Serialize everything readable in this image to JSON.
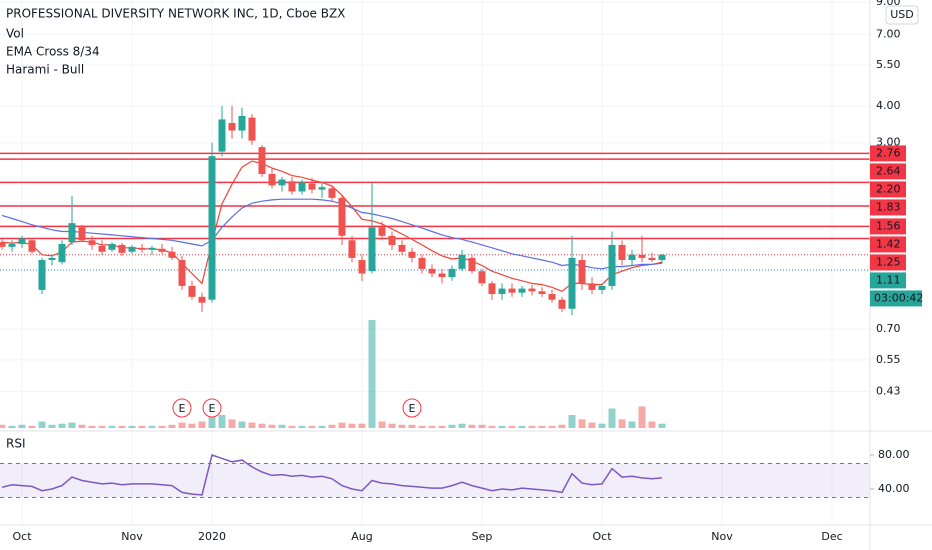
{
  "chart_data": {
    "type": "candlestick",
    "title": "PROFESSIONAL DIVERSITY NETWORK INC, 1D, Cboe BZX",
    "indicators": [
      "Vol",
      "EMA Cross 8/34",
      "Harami - Bull"
    ],
    "currency": "USD",
    "log_scale": true,
    "grid": true,
    "xlim": [
      -0.2,
      86.8
    ],
    "xticks": [
      {
        "value": 2,
        "label": "Oct"
      },
      {
        "value": 13,
        "label": "Nov"
      },
      {
        "value": 21,
        "label": "2020"
      },
      {
        "value": 36,
        "label": "Aug"
      },
      {
        "value": 48,
        "label": "Sep"
      },
      {
        "value": 60,
        "label": "Oct"
      },
      {
        "value": 72,
        "label": "Nov"
      },
      {
        "value": 83,
        "label": "Dec"
      }
    ],
    "ylim": [
      0.318,
      9.15
    ],
    "yticks": [
      {
        "value": 9,
        "label": "9.00"
      },
      {
        "value": 7,
        "label": "7.00"
      },
      {
        "value": 5.5,
        "label": "5.50"
      },
      {
        "value": 4,
        "label": "4.00"
      },
      {
        "value": 3,
        "label": "3.00"
      },
      {
        "value": 0.7,
        "label": "0.70"
      },
      {
        "value": 0.55,
        "label": "0.55"
      },
      {
        "value": 0.43,
        "label": "0.43"
      }
    ],
    "up_color": "#26a69a",
    "down_color": "#ef5350",
    "open": [
      1.38,
      1.33,
      1.36,
      1.4,
      0.95,
      1.2,
      1.18,
      1.38,
      1.55,
      1.4,
      1.34,
      1.3,
      1.35,
      1.28,
      1.32,
      1.3,
      1.31,
      1.28,
      1.2,
      0.98,
      0.9,
      0.88,
      2.8,
      3.5,
      3.3,
      3.65,
      2.9,
      2.35,
      2.15,
      2.22,
      2.05,
      2.18,
      2.08,
      2.1,
      1.95,
      1.4,
      1.2,
      1.1,
      1.55,
      1.45,
      1.35,
      1.28,
      1.22,
      1.12,
      1.08,
      1.05,
      1.12,
      1.22,
      1.1,
      1.0,
      0.92,
      0.96,
      0.93,
      0.96,
      0.94,
      0.92,
      0.88,
      0.82,
      1.2,
      1.0,
      0.95,
      0.98,
      1.35,
      1.2,
      1.25,
      1.22,
      1.2
    ],
    "high": [
      1.42,
      1.4,
      1.45,
      1.42,
      1.22,
      1.25,
      1.4,
      1.98,
      1.58,
      1.45,
      1.4,
      1.38,
      1.37,
      1.35,
      1.36,
      1.34,
      1.36,
      1.33,
      1.24,
      1.02,
      0.93,
      3.0,
      4.0,
      4.0,
      3.95,
      3.75,
      2.95,
      2.45,
      2.3,
      2.3,
      2.25,
      2.28,
      2.2,
      2.15,
      2.0,
      1.45,
      1.25,
      2.2,
      1.62,
      1.5,
      1.4,
      1.32,
      1.25,
      1.16,
      1.12,
      1.15,
      1.3,
      1.25,
      1.12,
      1.02,
      1.0,
      1.0,
      0.98,
      0.99,
      0.97,
      0.95,
      0.9,
      1.45,
      1.25,
      1.05,
      1.0,
      1.5,
      1.4,
      1.3,
      1.45,
      1.27,
      1.26
    ],
    "low": [
      1.3,
      1.28,
      1.32,
      1.26,
      0.92,
      1.15,
      1.16,
      1.35,
      1.38,
      1.3,
      1.25,
      1.28,
      1.24,
      1.26,
      1.27,
      1.25,
      1.26,
      1.2,
      0.95,
      0.88,
      0.8,
      0.86,
      2.7,
      3.1,
      3.1,
      2.95,
      2.3,
      2.1,
      2.05,
      2.0,
      2.0,
      2.02,
      1.95,
      1.9,
      1.35,
      1.18,
      1.02,
      1.08,
      1.4,
      1.3,
      1.25,
      1.18,
      1.08,
      1.05,
      1.0,
      1.02,
      1.1,
      1.08,
      0.98,
      0.88,
      0.88,
      0.9,
      0.9,
      0.91,
      0.9,
      0.86,
      0.8,
      0.78,
      0.95,
      0.92,
      0.92,
      0.95,
      1.15,
      1.15,
      1.18,
      1.18,
      1.17
    ],
    "close": [
      1.33,
      1.36,
      1.42,
      1.28,
      1.2,
      1.22,
      1.36,
      1.6,
      1.4,
      1.35,
      1.28,
      1.36,
      1.27,
      1.33,
      1.3,
      1.32,
      1.28,
      1.22,
      0.98,
      0.9,
      0.86,
      2.7,
      3.6,
      3.3,
      3.7,
      3.05,
      2.35,
      2.15,
      2.25,
      2.05,
      2.2,
      2.08,
      2.12,
      1.95,
      1.45,
      1.22,
      1.08,
      1.55,
      1.45,
      1.35,
      1.28,
      1.22,
      1.12,
      1.08,
      1.05,
      1.12,
      1.25,
      1.1,
      1.0,
      0.92,
      0.96,
      0.93,
      0.96,
      0.94,
      0.92,
      0.88,
      0.82,
      1.22,
      1.0,
      0.95,
      0.98,
      1.35,
      1.2,
      1.25,
      1.22,
      1.2,
      1.25
    ],
    "volume": [
      3,
      2,
      3,
      2,
      6,
      3,
      4,
      5,
      3,
      2,
      2,
      2,
      2,
      2,
      2,
      2,
      2,
      3,
      5,
      4,
      6,
      10,
      12,
      8,
      6,
      5,
      4,
      3,
      3,
      2,
      2,
      2,
      2,
      3,
      5,
      4,
      4,
      100,
      6,
      4,
      3,
      3,
      2,
      2,
      2,
      3,
      4,
      3,
      3,
      2,
      2,
      2,
      2,
      2,
      2,
      2,
      3,
      12,
      8,
      5,
      4,
      18,
      8,
      6,
      20,
      6,
      4
    ],
    "ema": [
      {
        "color": "#f44336",
        "values": [
          1.38,
          1.37,
          1.38,
          1.35,
          1.25,
          1.24,
          1.28,
          1.38,
          1.39,
          1.38,
          1.35,
          1.35,
          1.32,
          1.32,
          1.31,
          1.31,
          1.3,
          1.27,
          1.17,
          1.08,
          1.0,
          1.38,
          1.86,
          2.17,
          2.48,
          2.6,
          2.55,
          2.46,
          2.4,
          2.32,
          2.29,
          2.24,
          2.2,
          2.14,
          1.99,
          1.82,
          1.65,
          1.63,
          1.59,
          1.53,
          1.47,
          1.41,
          1.35,
          1.29,
          1.24,
          1.21,
          1.22,
          1.19,
          1.15,
          1.1,
          1.07,
          1.04,
          1.02,
          1.0,
          0.99,
          0.97,
          0.94,
          1.0,
          1.0,
          0.99,
          0.99,
          1.07,
          1.1,
          1.13,
          1.15,
          1.16,
          1.18
        ]
      },
      {
        "color": "#5b6ee1",
        "values": [
          1.7,
          1.66,
          1.62,
          1.58,
          1.55,
          1.52,
          1.5,
          1.5,
          1.49,
          1.48,
          1.47,
          1.46,
          1.45,
          1.44,
          1.43,
          1.42,
          1.41,
          1.4,
          1.38,
          1.36,
          1.34,
          1.4,
          1.55,
          1.68,
          1.8,
          1.87,
          1.9,
          1.92,
          1.93,
          1.93,
          1.93,
          1.93,
          1.92,
          1.9,
          1.86,
          1.8,
          1.74,
          1.72,
          1.69,
          1.66,
          1.62,
          1.58,
          1.54,
          1.5,
          1.46,
          1.43,
          1.41,
          1.38,
          1.35,
          1.32,
          1.29,
          1.26,
          1.24,
          1.22,
          1.2,
          1.18,
          1.15,
          1.16,
          1.15,
          1.13,
          1.12,
          1.14,
          1.14,
          1.15,
          1.16,
          1.16,
          1.17
        ]
      }
    ],
    "levels": [
      {
        "value": 2.76,
        "label": "2.76"
      },
      {
        "value": 2.64,
        "label": "2.64"
      },
      {
        "value": 2.2,
        "label": "2.20"
      },
      {
        "value": 1.83,
        "label": "1.83"
      },
      {
        "value": 1.56,
        "label": "1.56"
      },
      {
        "value": 1.42,
        "label": "1.42"
      }
    ],
    "level_color": "#f23645",
    "last_price": {
      "value": 1.25,
      "label": "1.25"
    },
    "bid": {
      "value": 1.11,
      "label": "1.11"
    },
    "countdown": "03:00:42",
    "earnings": [
      {
        "index": 18,
        "label": "E"
      },
      {
        "index": 21,
        "label": "E"
      },
      {
        "index": 41,
        "label": "E"
      }
    ],
    "rsi": {
      "title": "RSI",
      "color": "#7e57c2",
      "ylim": [
        0,
        100
      ],
      "yticks": [
        {
          "value": 80,
          "label": "80.00"
        },
        {
          "value": 40,
          "label": "40.00"
        }
      ],
      "band": [
        30,
        70
      ],
      "values": [
        42,
        45,
        44,
        43,
        38,
        40,
        44,
        54,
        50,
        48,
        46,
        47,
        45,
        46,
        46,
        46,
        45,
        44,
        36,
        34,
        33,
        80,
        76,
        72,
        74,
        66,
        60,
        56,
        57,
        55,
        56,
        54,
        55,
        52,
        44,
        40,
        38,
        50,
        47,
        46,
        44,
        43,
        42,
        41,
        41,
        44,
        48,
        44,
        41,
        38,
        40,
        39,
        41,
        40,
        39,
        38,
        36,
        58,
        47,
        45,
        46,
        64,
        54,
        55,
        53,
        52,
        53
      ]
    }
  }
}
